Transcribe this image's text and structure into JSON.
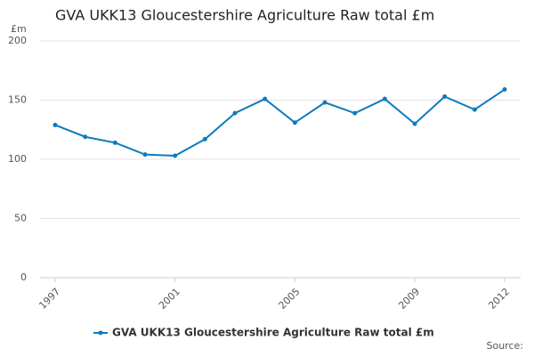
{
  "chart_data": {
    "type": "line",
    "title": "GVA UKK13 Gloucestershire Agriculture Raw total £m",
    "y_label": "£m",
    "source_label": "Source:",
    "x": [
      1997,
      1998,
      1999,
      2000,
      2001,
      2002,
      2003,
      2004,
      2005,
      2006,
      2007,
      2008,
      2009,
      2010,
      2011,
      2012
    ],
    "series": [
      {
        "name": "GVA UKK13 Gloucestershire Agriculture Raw total £m",
        "color": "#0e7bbd",
        "values": [
          129,
          119,
          114,
          104,
          103,
          117,
          139,
          151,
          131,
          148,
          139,
          151,
          130,
          153,
          142,
          159
        ]
      }
    ],
    "xlim": [
      1997,
      2012
    ],
    "xticks": [
      1997,
      2001,
      2005,
      2009,
      2012
    ],
    "ylim": [
      0,
      200
    ],
    "yticks": [
      0,
      50,
      100,
      150,
      200
    ],
    "grid": true,
    "legend": "bottom"
  }
}
